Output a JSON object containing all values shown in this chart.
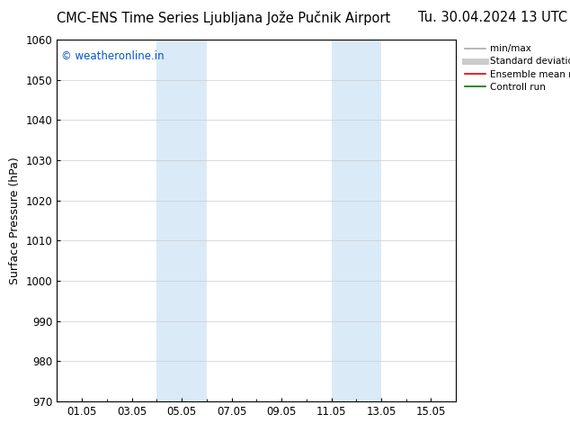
{
  "title_left": "CMC-ENS Time Series Ljubljana Jože Pučnik Airport",
  "title_right": "Tu. 30.04.2024 13 UTC",
  "ylabel": "Surface Pressure (hPa)",
  "ylim": [
    970,
    1060
  ],
  "yticks": [
    970,
    980,
    990,
    1000,
    1010,
    1020,
    1030,
    1040,
    1050,
    1060
  ],
  "xtick_labels": [
    "01.05",
    "03.05",
    "05.05",
    "07.05",
    "09.05",
    "11.05",
    "13.05",
    "15.05"
  ],
  "xtick_positions": [
    1,
    3,
    5,
    7,
    9,
    11,
    13,
    15
  ],
  "xlim": [
    0,
    16
  ],
  "shaded_bands": [
    {
      "x_start": 4.0,
      "x_end": 6.0,
      "color": "#daeaf7"
    },
    {
      "x_start": 11.0,
      "x_end": 13.0,
      "color": "#daeaf7"
    }
  ],
  "watermark": "© weatheronline.in",
  "watermark_color": "#0055cc",
  "legend_entries": [
    {
      "label": "min/max",
      "color": "#aaaaaa",
      "lw": 1.2
    },
    {
      "label": "Standard deviation",
      "color": "#cccccc",
      "lw": 5
    },
    {
      "label": "Ensemble mean run",
      "color": "#dd0000",
      "lw": 1.2
    },
    {
      "label": "Controll run",
      "color": "#007700",
      "lw": 1.2
    }
  ],
  "bg_color": "#ffffff",
  "grid_color": "#cccccc",
  "title_fontsize": 10.5,
  "tick_fontsize": 8.5,
  "ylabel_fontsize": 9,
  "legend_fontsize": 7.5,
  "watermark_fontsize": 8.5
}
